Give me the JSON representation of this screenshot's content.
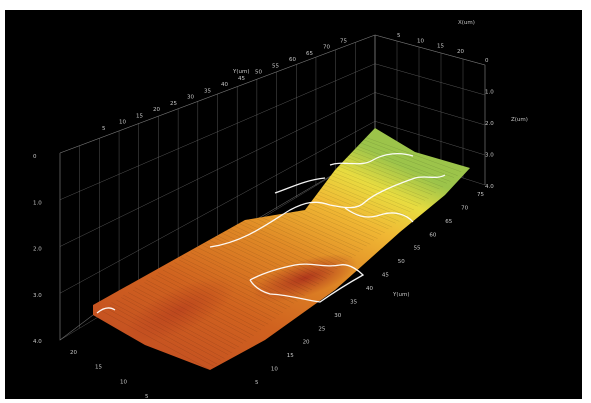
{
  "chart_data": {
    "type": "surface",
    "title": "",
    "axes": {
      "x": {
        "label": "Y(um)",
        "ticks": [
          "5",
          "10",
          "15",
          "20",
          "25",
          "30",
          "35",
          "40",
          "45",
          "50",
          "55",
          "60",
          "65",
          "70",
          "75"
        ],
        "range": [
          0,
          75
        ]
      },
      "y": {
        "label": "X(um)",
        "ticks": [
          "5",
          "10",
          "15",
          "20"
        ],
        "range": [
          0,
          20
        ]
      },
      "z": {
        "label": "Z(um)",
        "ticks_left": [
          "0",
          "1.0",
          "2.0",
          "3.0",
          "4.0"
        ],
        "ticks_right": [
          "0",
          "1.0",
          "2.0",
          "3.0",
          "4.0"
        ],
        "range": [
          0,
          4.0
        ]
      }
    },
    "back_top_ticks": [
      "5",
      "10",
      "15",
      "20",
      "25",
      "30",
      "35",
      "40",
      "45",
      "50",
      "55",
      "60",
      "65",
      "70",
      "75"
    ],
    "right_top_ticks": [
      "5",
      "10",
      "15",
      "20"
    ],
    "grid": true,
    "colorscale": [
      "#b83820",
      "#d46820",
      "#e89a28",
      "#f0c83a",
      "#e8e040",
      "#a8c848"
    ],
    "contour_color": "#ffffff"
  }
}
